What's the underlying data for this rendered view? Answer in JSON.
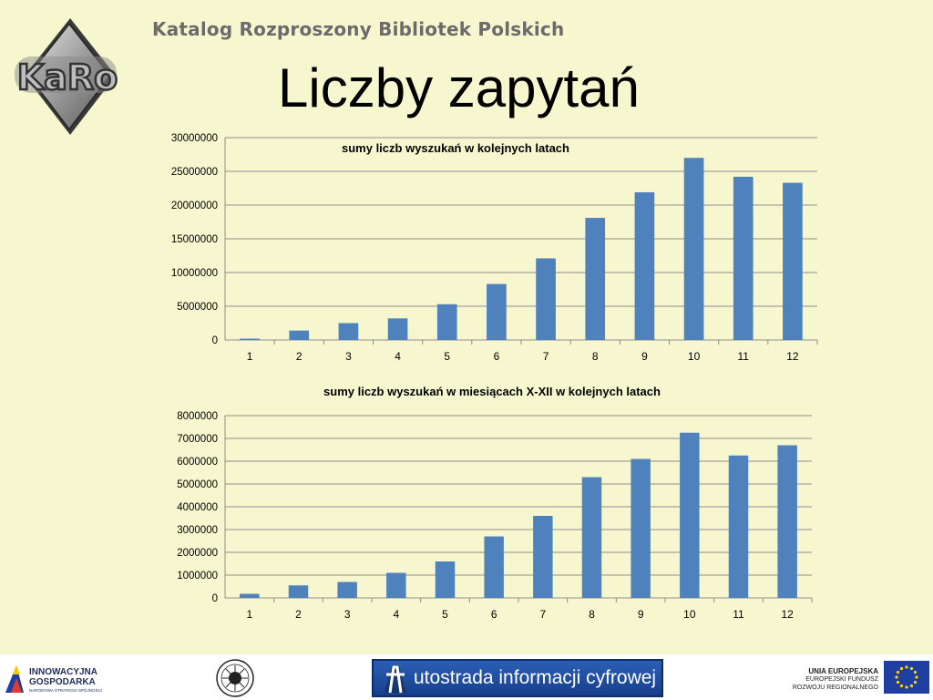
{
  "header": {
    "logo_text": "KaRo",
    "subtitle": "Katalog Rozproszony Bibliotek Polskich",
    "title": "Liczby zapytań"
  },
  "colors": {
    "background": "#f7f7cf",
    "bar": "#4f81bd",
    "grid": "#8c8c8c"
  },
  "chart_data": [
    {
      "type": "bar",
      "title": "sumy liczb wyszukań w kolejnych latach",
      "categories": [
        "1",
        "2",
        "3",
        "4",
        "5",
        "6",
        "7",
        "8",
        "9",
        "10",
        "11",
        "12"
      ],
      "values": [
        200000,
        1400000,
        2500000,
        3200000,
        5300000,
        8300000,
        12100000,
        18100000,
        21900000,
        27000000,
        24200000,
        23300000
      ],
      "ylim": [
        0,
        30000000
      ],
      "yticks": [
        "0",
        "5000000",
        "10000000",
        "15000000",
        "20000000",
        "25000000",
        "30000000"
      ],
      "grid": true,
      "legend": "none"
    },
    {
      "type": "bar",
      "title": "sumy liczb wyszukań  w miesiącach X-XII w kolejnych latach",
      "categories": [
        "1",
        "2",
        "3",
        "4",
        "5",
        "6",
        "7",
        "8",
        "9",
        "10",
        "11",
        "12"
      ],
      "values": [
        180000,
        550000,
        700000,
        1100000,
        1600000,
        2700000,
        3600000,
        5300000,
        6100000,
        7250000,
        6250000,
        6700000
      ],
      "ylim": [
        0,
        8000000
      ],
      "yticks": [
        "0",
        "1000000",
        "2000000",
        "3000000",
        "4000000",
        "5000000",
        "6000000",
        "7000000",
        "8000000"
      ],
      "grid": true,
      "legend": "none"
    }
  ],
  "footer": {
    "ig_line1": "INNOWACYJNA",
    "ig_line2": "GOSPODARKA",
    "ig_line3": "NARODOWA STRATEGIA SPÓJNOŚCI",
    "highway_text": "utostrada informacji cyfrowej",
    "eu_line1": "UNIA EUROPEJSKA",
    "eu_line2": "EUROPEJSKI FUNDUSZ",
    "eu_line3": "ROZWOJU REGIONALNEGO"
  }
}
